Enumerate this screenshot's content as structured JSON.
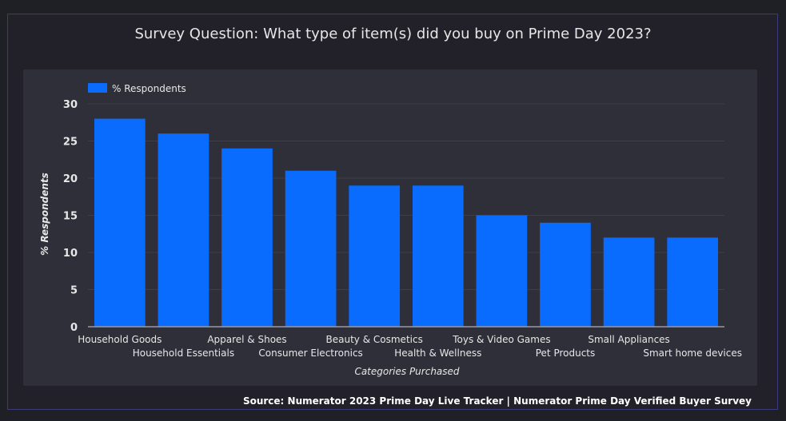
{
  "page": {
    "title": "Survey Question: What type of item(s) did you buy on Prime Day 2023?",
    "source": "Source: Numerator 2023 Prime Day Live Tracker | Numerator Prime Day Verified Buyer Survey"
  },
  "colors": {
    "bar": "#0a6cff",
    "axis_text": "#e8e8e8",
    "grid": "#3d3e48"
  },
  "chart_data": {
    "type": "bar",
    "title": "Survey Question: What type of item(s) did you buy on Prime Day 2023?",
    "xlabel": "Categories Purchased",
    "ylabel": "% Respondents",
    "ylim": [
      0,
      30
    ],
    "yticks": [
      0,
      5,
      10,
      15,
      20,
      25,
      30
    ],
    "grid": true,
    "legend": {
      "position": "top-left",
      "entries": [
        "% Respondents"
      ]
    },
    "categories": [
      "Household Goods",
      "Household Essentials",
      "Apparel & Shoes",
      "Consumer Electronics",
      "Beauty & Cosmetics",
      "Health & Wellness",
      "Toys & Video Games",
      "Pet Products",
      "Small Appliances",
      "Smart home devices"
    ],
    "series": [
      {
        "name": "% Respondents",
        "values": [
          28,
          26,
          24,
          21,
          19,
          19,
          15,
          14,
          12,
          12
        ]
      }
    ]
  }
}
